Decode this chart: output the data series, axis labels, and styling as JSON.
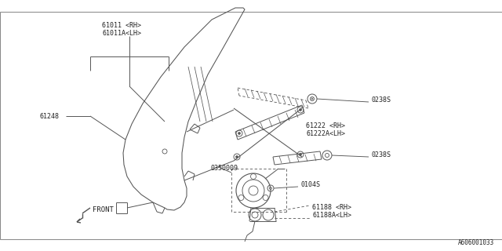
{
  "bg_color": "#ffffff",
  "line_color": "#555555",
  "text_color": "#222222",
  "diagram_id": "A606001033",
  "labels": {
    "part_61011": "61011 <RH>\n61011A<LH>",
    "part_61248": "61248",
    "part_61222": "61222 <RH>\n61222A<LH>",
    "part_0238S_1": "0238S",
    "part_0238S_2": "0238S",
    "part_0350009": "0350009",
    "part_0104S": "0104S",
    "part_61188": "61188 <RH>\n61188A<LH>",
    "front_label": "FRONT"
  },
  "font_size_label": 6.0,
  "font_size_diagram_id": 5.5
}
